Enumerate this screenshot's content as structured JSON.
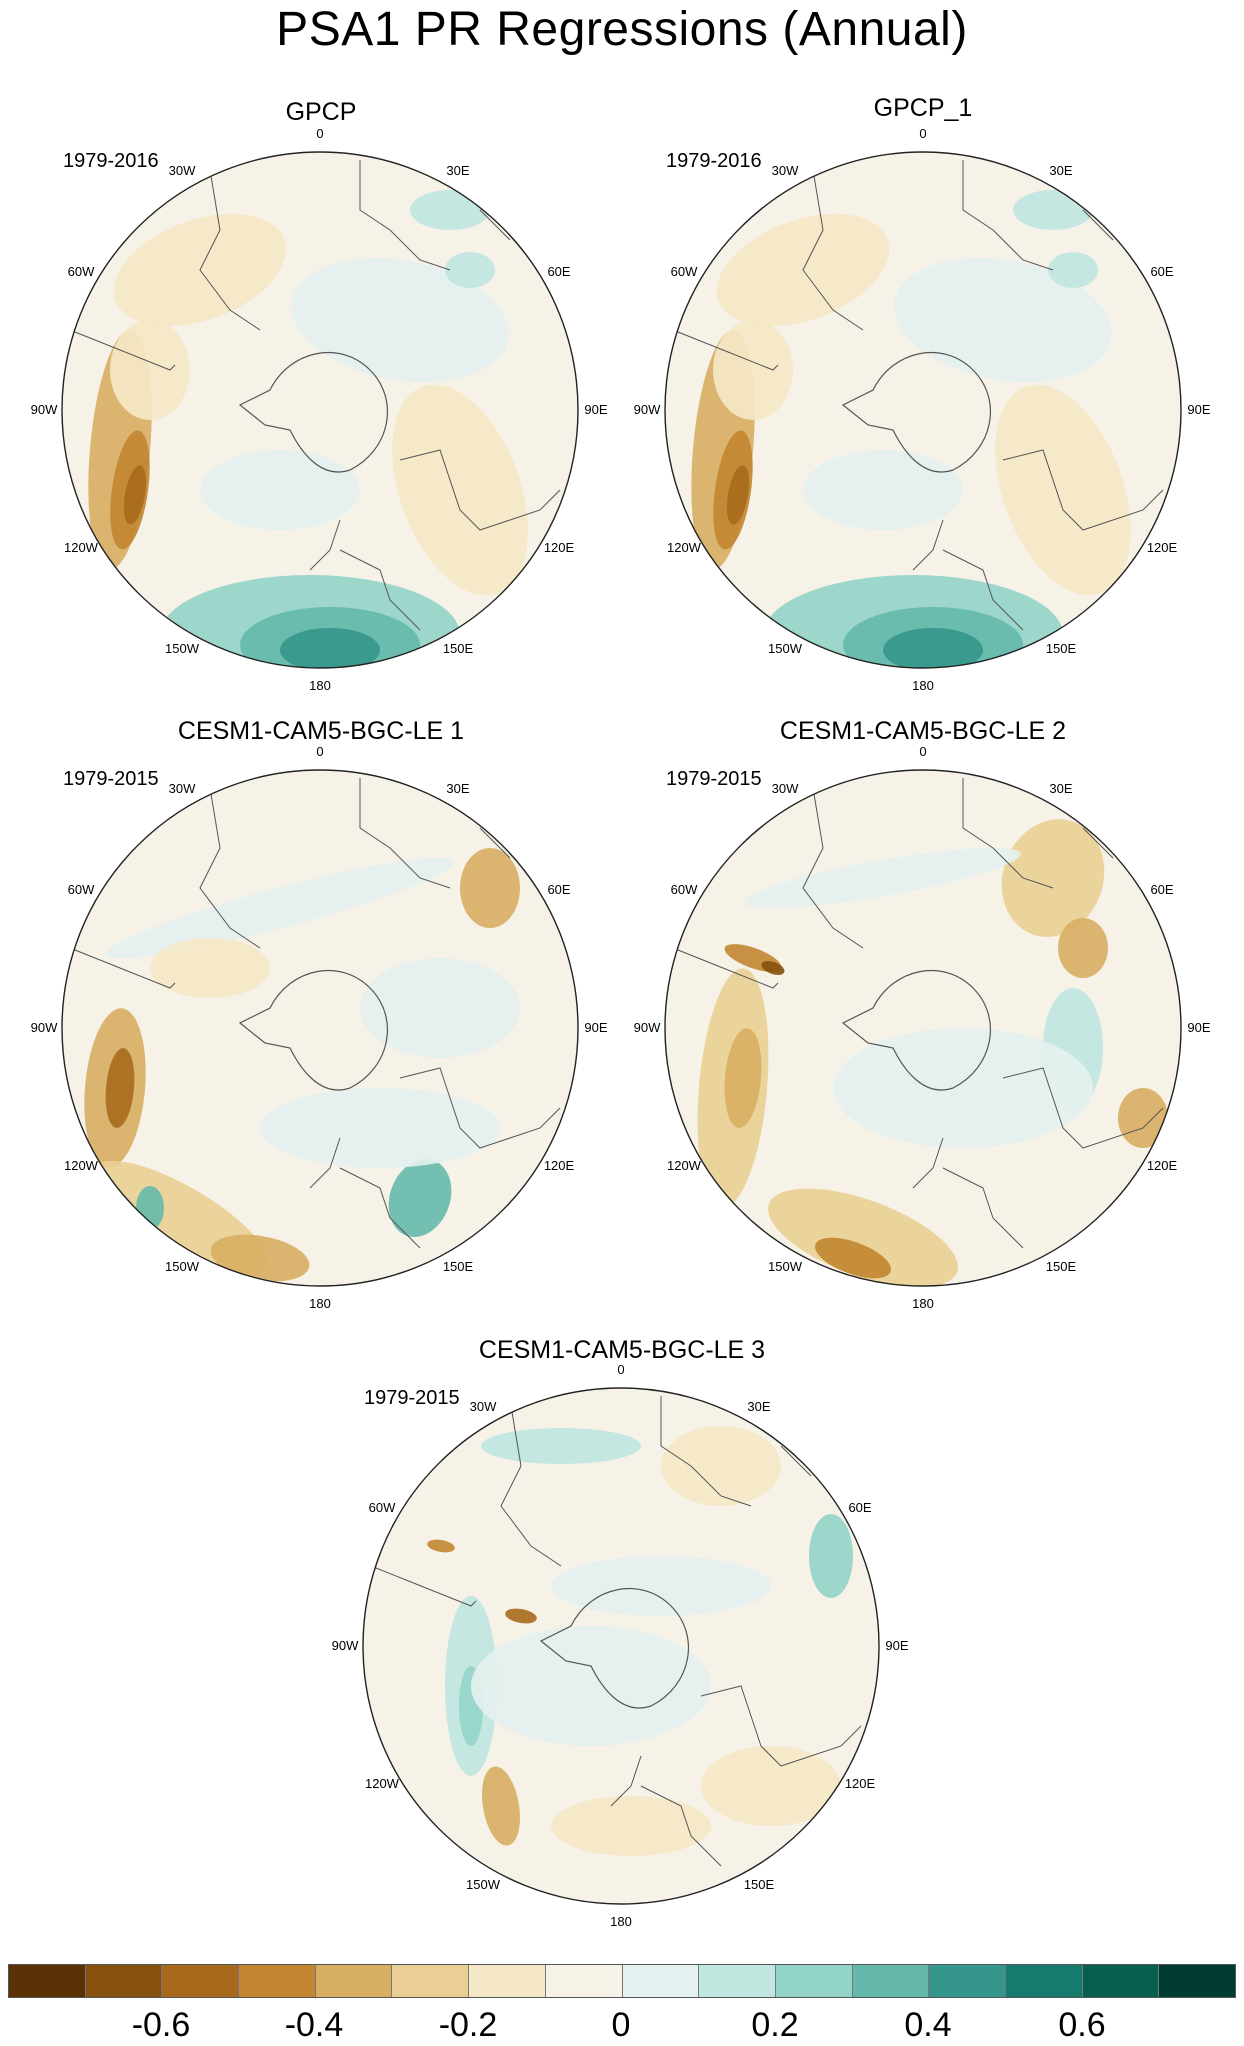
{
  "title": "PSA1 PR Regressions (Annual)",
  "panels": [
    {
      "name": "GPCP",
      "period": "1979-2016"
    },
    {
      "name": "GPCP_1",
      "period": "1979-2016"
    },
    {
      "name": "CESM1-CAM5-BGC-LE 1",
      "period": "1979-2015"
    },
    {
      "name": "CESM1-CAM5-BGC-LE 2",
      "period": "1979-2015"
    },
    {
      "name": "CESM1-CAM5-BGC-LE 3",
      "period": "1979-2015"
    }
  ],
  "longitude_labels": [
    "0",
    "30E",
    "60E",
    "90E",
    "120E",
    "150E",
    "180",
    "150W",
    "120W",
    "90W",
    "60W",
    "30W"
  ],
  "colorbar": {
    "colors": [
      "#5a3104",
      "#86510d",
      "#a76a1c",
      "#c28530",
      "#d8ae63",
      "#eacf94",
      "#f5e8c6",
      "#f6f2e8",
      "#e4f1f0",
      "#c0e6e0",
      "#93d4c9",
      "#65b9ac",
      "#35968b",
      "#167a6d",
      "#07604f",
      "#003c30"
    ],
    "tick_labels": [
      "-0.6",
      "-0.4",
      "-0.2",
      "0",
      "0.2",
      "0.4",
      "0.6"
    ]
  }
}
